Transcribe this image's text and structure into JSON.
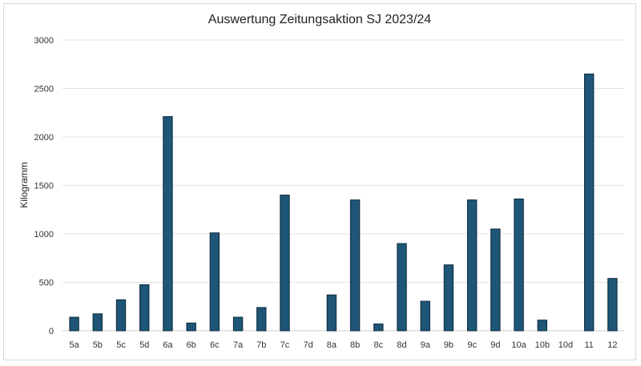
{
  "chart_data": {
    "type": "bar",
    "title": "Auswertung Zeitungsaktion SJ 2023/24",
    "xlabel": "",
    "ylabel": "Kilogramm",
    "ylim": [
      0,
      3000
    ],
    "yticks": [
      0,
      500,
      1000,
      1500,
      2000,
      2500,
      3000
    ],
    "grid": true,
    "legend": "none",
    "bar_color": "#1f5677",
    "categories": [
      "5a",
      "5b",
      "5c",
      "5d",
      "6a",
      "6b",
      "6c",
      "7a",
      "7b",
      "7c",
      "7d",
      "8a",
      "8b",
      "8c",
      "8d",
      "9a",
      "9b",
      "9c",
      "9d",
      "10a",
      "10b",
      "10d",
      "11",
      "12"
    ],
    "values": [
      140,
      175,
      320,
      475,
      2210,
      80,
      1010,
      140,
      240,
      1400,
      0,
      370,
      1350,
      70,
      900,
      305,
      680,
      1350,
      1050,
      1360,
      110,
      0,
      2650,
      540
    ]
  }
}
